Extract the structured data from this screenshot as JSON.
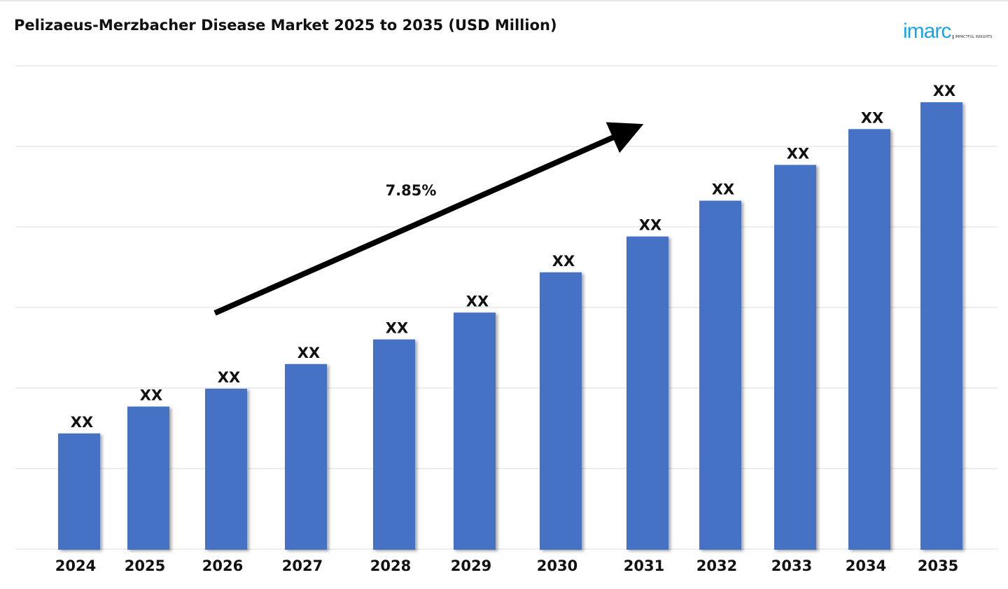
{
  "chart_data": {
    "type": "bar",
    "title": "Pelizaeus-Merzbacher Disease Market 2025 to 2035 (USD Million)",
    "categories": [
      "2024",
      "2025",
      "2026",
      "2027",
      "2028",
      "2029",
      "2030",
      "2031",
      "2032",
      "2033",
      "2034",
      "2035"
    ],
    "relative_values": [
      26,
      32,
      36,
      41.5,
      47,
      53,
      62,
      70,
      78,
      86,
      94,
      100
    ],
    "data_labels": [
      "XX",
      "XX",
      "XX",
      "XX",
      "XX",
      "XX",
      "XX",
      "XX",
      "XX",
      "XX",
      "XX",
      "XX"
    ],
    "annotation": "7.85%",
    "grid": true,
    "bar_color": "#4472C4"
  },
  "logo": {
    "word": "imarc",
    "tagline": "IMPACTFUL INSIGHTS",
    "color": "#1aa3e8"
  }
}
